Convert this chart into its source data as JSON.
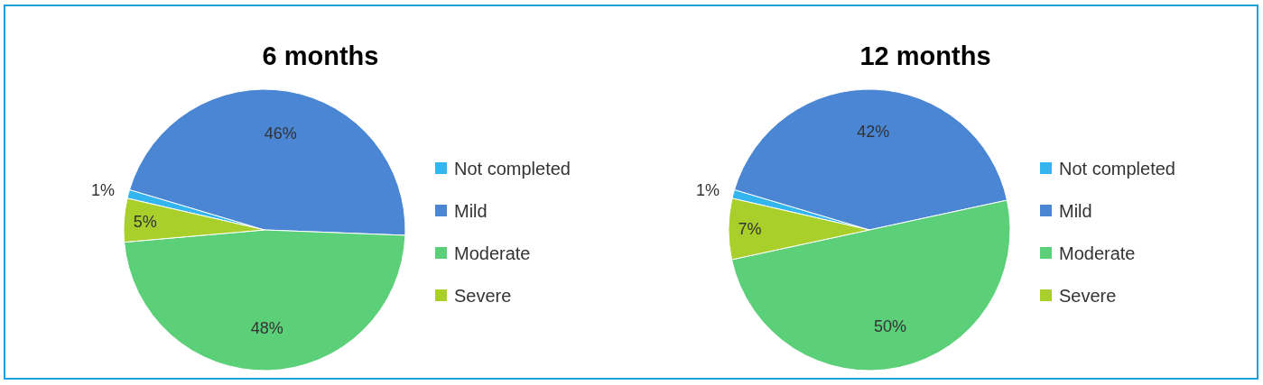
{
  "chart_data": [
    {
      "type": "pie",
      "title": "6 months",
      "categories": [
        "Not completed",
        "Mild",
        "Moderate",
        "Severe"
      ],
      "values": [
        1,
        46,
        48,
        5
      ],
      "colors": [
        "#33b5f0",
        "#4a86d4",
        "#5ccf79",
        "#a8cf2a"
      ],
      "value_labels": [
        "1%",
        "46%",
        "48%",
        "5%"
      ],
      "legend": "right"
    },
    {
      "type": "pie",
      "title": "12 months",
      "categories": [
        "Not completed",
        "Mild",
        "Moderate",
        "Severe"
      ],
      "values": [
        1,
        42,
        50,
        7
      ],
      "colors": [
        "#33b5f0",
        "#4a86d4",
        "#5ccf79",
        "#a8cf2a"
      ],
      "value_labels": [
        "1%",
        "42%",
        "50%",
        "7%"
      ],
      "legend": "right"
    }
  ]
}
